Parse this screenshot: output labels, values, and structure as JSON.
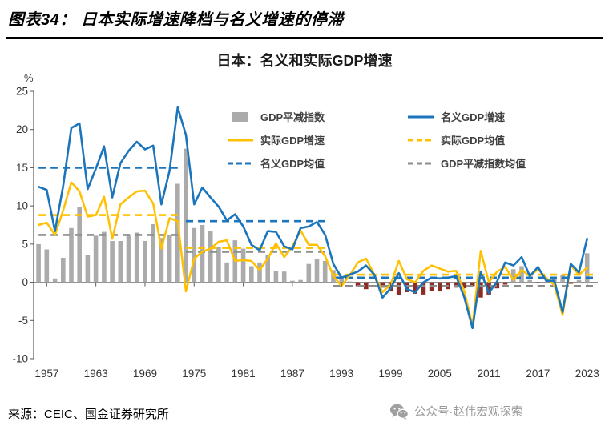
{
  "header": {
    "title": "图表34：  日本实际增速降档与名义增速的停滞"
  },
  "footer": {
    "source": "来源：CEIC、国金证券研究所",
    "watermark": "公众号·赵伟宏观探索"
  },
  "chart_data": {
    "type": "combo",
    "title": "日本：名义和实际GDP增速",
    "ylabel": "%",
    "ylim": [
      -10,
      25
    ],
    "yticks": [
      -10,
      -5,
      0,
      5,
      10,
      15,
      20,
      25
    ],
    "xticks": [
      1957,
      1963,
      1969,
      1975,
      1981,
      1987,
      1993,
      1999,
      2005,
      2011,
      2017,
      2023
    ],
    "xlim": [
      1955.4,
      2024.3
    ],
    "start_year": 1956,
    "colors": {
      "nominal": "#1B75BC",
      "real": "#FFC000",
      "deflator_pos": "#ABABAB",
      "deflator_neg": "#8E2B25",
      "deflator_mean": "#8C8C8C"
    },
    "series": {
      "deflator_bars": {
        "name": "GDP平减指数",
        "values": [
          5.0,
          4.3,
          0.5,
          3.2,
          7.1,
          9.9,
          3.6,
          6.1,
          6.6,
          5.4,
          5.4,
          6.1,
          6.5,
          5.4,
          7.6,
          5.8,
          6.2,
          12.9,
          17.5,
          7.1,
          7.5,
          6.7,
          4.6,
          2.6,
          5.5,
          4.4,
          2.1,
          2.6,
          3.6,
          1.5,
          1.4,
          0.2,
          0.3,
          2.4,
          3.0,
          2.8,
          1.6,
          0.8,
          0.1,
          -0.5,
          -0.9,
          0.0,
          -0.7,
          -1.2,
          -1.7,
          -1.3,
          -1.5,
          -1.6,
          -1.1,
          -1.2,
          -0.9,
          -0.7,
          -0.8,
          -0.5,
          -2.0,
          -1.6,
          -0.8,
          -0.3,
          1.7,
          2.1,
          0.3,
          -0.1,
          0.0,
          0.6,
          0.9,
          -0.2,
          0.3,
          3.8
        ]
      },
      "nominal_line": {
        "name": "名义GDP增速",
        "values": [
          12.5,
          12.1,
          6.7,
          12.6,
          20.2,
          20.8,
          12.2,
          14.9,
          17.8,
          11.1,
          15.6,
          17.2,
          18.4,
          17.4,
          17.9,
          10.2,
          14.6,
          22.9,
          19.3,
          10.2,
          12.4,
          11.1,
          9.9,
          8.1,
          8.9,
          7.3,
          4.9,
          4.2,
          6.7,
          6.6,
          4.7,
          4.3,
          7.1,
          7.3,
          7.9,
          6.2,
          2.4,
          0.6,
          1.0,
          1.4,
          2.2,
          1.0,
          -2.0,
          -0.8,
          1.2,
          -0.9,
          -1.3,
          0.0,
          0.6,
          0.5,
          0.6,
          0.8,
          -2.0,
          -6.0,
          1.4,
          -1.4,
          0.1,
          2.6,
          2.2,
          3.3,
          0.8,
          2.0,
          0.2,
          0.2,
          -3.9,
          2.4,
          1.3,
          5.7
        ]
      },
      "real_line": {
        "name": "实际GDP增速",
        "values": [
          7.5,
          7.8,
          6.2,
          9.4,
          13.1,
          11.9,
          8.6,
          8.8,
          11.2,
          5.7,
          10.2,
          11.1,
          11.9,
          12.0,
          10.3,
          4.4,
          8.4,
          8.0,
          -1.2,
          3.1,
          4.0,
          4.4,
          5.3,
          5.5,
          2.8,
          2.9,
          2.8,
          1.6,
          3.1,
          5.1,
          3.3,
          4.7,
          6.8,
          4.9,
          4.9,
          3.4,
          0.8,
          -0.5,
          0.9,
          2.6,
          3.1,
          1.0,
          -1.3,
          -0.3,
          2.8,
          0.4,
          0.0,
          1.5,
          2.2,
          1.8,
          1.4,
          1.5,
          -1.2,
          -5.7,
          4.1,
          0.0,
          1.4,
          2.0,
          0.3,
          1.6,
          0.8,
          1.7,
          0.6,
          -0.4,
          -4.3,
          2.2,
          1.0,
          1.9
        ]
      }
    },
    "means": [
      {
        "name": "名义GDP均值",
        "color": "#1B75BC",
        "segments": [
          {
            "from": 1956,
            "to": 1973,
            "value": 15.0
          },
          {
            "from": 1974,
            "to": 1991,
            "value": 8.0
          },
          {
            "from": 1992,
            "to": 2023.8,
            "value": 0.6
          }
        ]
      },
      {
        "name": "实际GDP均值",
        "color": "#FFC000",
        "segments": [
          {
            "from": 1956,
            "to": 1973,
            "value": 8.8
          },
          {
            "from": 1974,
            "to": 1991,
            "value": 4.5
          },
          {
            "from": 1992,
            "to": 2023.8,
            "value": 1.0
          }
        ]
      },
      {
        "name": "GDP平减指数均值",
        "color": "#8C8C8C",
        "segments": [
          {
            "from": 1956,
            "to": 1973,
            "value": 6.2
          },
          {
            "from": 1974,
            "to": 1991,
            "value": 4.0
          },
          {
            "from": 1992,
            "to": 2023.8,
            "value": -0.5
          }
        ]
      }
    ],
    "legend": [
      {
        "label": "GDP平减指数",
        "swatch": "bar",
        "color": "#ABABAB"
      },
      {
        "label": "名义GDP增速",
        "swatch": "line",
        "color": "#1B75BC"
      },
      {
        "label": "实际GDP增速",
        "swatch": "line",
        "color": "#FFC000"
      },
      {
        "label": "实际GDP均值",
        "swatch": "dash",
        "color": "#FFC000"
      },
      {
        "label": "名义GDP均值",
        "swatch": "dash",
        "color": "#1B75BC"
      },
      {
        "label": "GDP平减指数均值",
        "swatch": "dash",
        "color": "#8C8C8C"
      }
    ]
  }
}
